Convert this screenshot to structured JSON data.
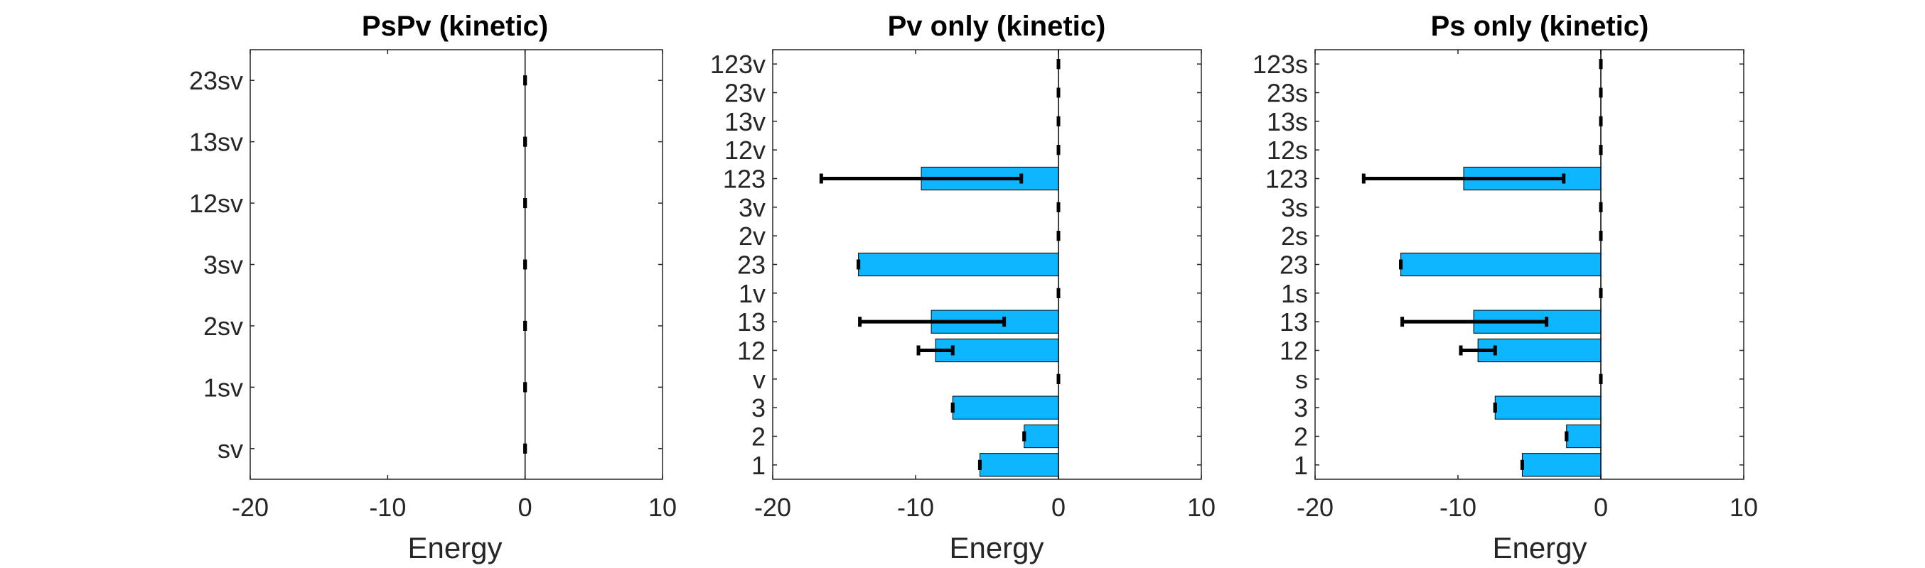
{
  "figure": {
    "background": "#ffffff",
    "bar_color": "#0db6ff",
    "error_color": "#000000",
    "axis_color": "#262626"
  },
  "chart_data": [
    {
      "type": "bar",
      "orientation": "horizontal",
      "title": "PsPv (kinetic)",
      "xlabel": "Energy",
      "xlim": [
        -20,
        10
      ],
      "xticks": [
        -20,
        -10,
        0,
        10
      ],
      "categories": [
        "sv",
        "1sv",
        "2sv",
        "3sv",
        "12sv",
        "13sv",
        "23sv"
      ],
      "values": [
        0,
        0,
        0,
        0,
        0,
        0,
        0
      ],
      "errors": [
        [
          0,
          0
        ],
        [
          0,
          0
        ],
        [
          0,
          0
        ],
        [
          0,
          0
        ],
        [
          0,
          0
        ],
        [
          0,
          0
        ],
        [
          0,
          0
        ]
      ]
    },
    {
      "type": "bar",
      "orientation": "horizontal",
      "title": "Pv only (kinetic)",
      "xlabel": "Energy",
      "xlim": [
        -20,
        10
      ],
      "xticks": [
        -20,
        -10,
        0,
        10
      ],
      "categories": [
        "1",
        "2",
        "3",
        "v",
        "12",
        "13",
        "1v",
        "23",
        "2v",
        "3v",
        "123",
        "12v",
        "13v",
        "23v",
        "123v"
      ],
      "values": [
        -5.5,
        -2.4,
        -7.4,
        0,
        -8.6,
        -8.9,
        0,
        -14.0,
        0,
        0,
        -9.6,
        0,
        0,
        0,
        0
      ],
      "errors": [
        [
          -5.5,
          -5.5
        ],
        [
          -2.4,
          -2.4
        ],
        [
          -7.4,
          -7.4
        ],
        [
          0,
          0
        ],
        [
          -9.8,
          -7.4
        ],
        [
          -13.9,
          -3.8
        ],
        [
          0,
          0
        ],
        [
          -14.0,
          -14.0
        ],
        [
          0,
          0
        ],
        [
          0,
          0
        ],
        [
          -16.6,
          -2.6
        ],
        [
          0,
          0
        ],
        [
          0,
          0
        ],
        [
          0,
          0
        ],
        [
          0,
          0
        ]
      ]
    },
    {
      "type": "bar",
      "orientation": "horizontal",
      "title": "Ps only (kinetic)",
      "xlabel": "Energy",
      "xlim": [
        -20,
        10
      ],
      "xticks": [
        -20,
        -10,
        0,
        10
      ],
      "categories": [
        "1",
        "2",
        "3",
        "s",
        "12",
        "13",
        "1s",
        "23",
        "2s",
        "3s",
        "123",
        "12s",
        "13s",
        "23s",
        "123s"
      ],
      "values": [
        -5.5,
        -2.4,
        -7.4,
        0,
        -8.6,
        -8.9,
        0,
        -14.0,
        0,
        0,
        -9.6,
        0,
        0,
        0,
        0
      ],
      "errors": [
        [
          -5.5,
          -5.5
        ],
        [
          -2.4,
          -2.4
        ],
        [
          -7.4,
          -7.4
        ],
        [
          0,
          0
        ],
        [
          -9.8,
          -7.4
        ],
        [
          -13.9,
          -3.8
        ],
        [
          0,
          0
        ],
        [
          -14.0,
          -14.0
        ],
        [
          0,
          0
        ],
        [
          0,
          0
        ],
        [
          -16.6,
          -2.6
        ],
        [
          0,
          0
        ],
        [
          0,
          0
        ],
        [
          0,
          0
        ],
        [
          0,
          0
        ]
      ]
    }
  ]
}
